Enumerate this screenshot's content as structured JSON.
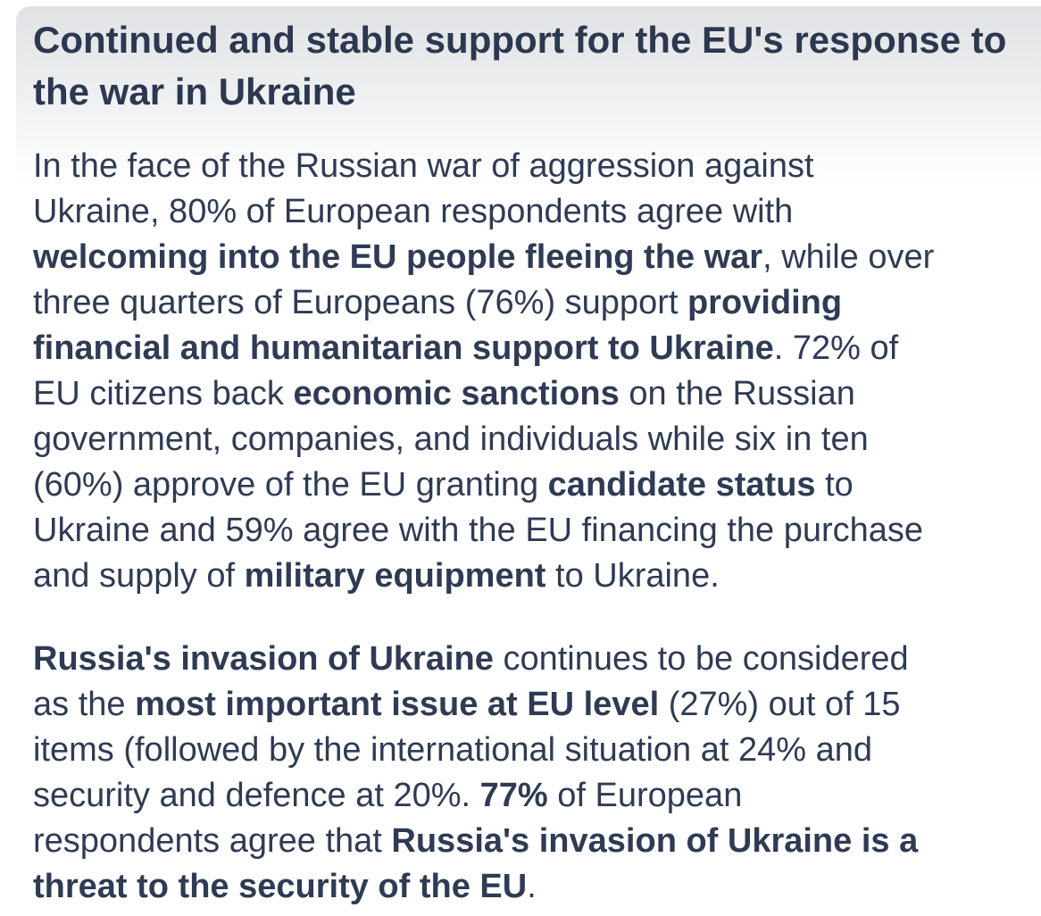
{
  "page": {
    "background": "#ffffff",
    "band_top_color": "#e1e2e5",
    "heading_color": "#2c3850",
    "text_color": "#2f3b54"
  },
  "heading": {
    "lines": [
      "Continued and stable support for the EU's response to",
      "the war in Ukraine"
    ]
  },
  "paragraphs": [
    {
      "lines": [
        [
          {
            "t": "In the face of the Russian war of aggression against",
            "b": false
          }
        ],
        [
          {
            "t": "Ukraine, 80% of European respondents agree with",
            "b": false
          }
        ],
        [
          {
            "t": "welcoming into the EU people fleeing the war",
            "b": true
          },
          {
            "t": ", while over",
            "b": false
          }
        ],
        [
          {
            "t": "three quarters of Europeans (76%) support ",
            "b": false
          },
          {
            "t": "providing",
            "b": true
          }
        ],
        [
          {
            "t": "financial and humanitarian support to Ukraine",
            "b": true
          },
          {
            "t": ". 72% of",
            "b": false
          }
        ],
        [
          {
            "t": "EU citizens back ",
            "b": false
          },
          {
            "t": "economic sanctions",
            "b": true
          },
          {
            "t": " on the Russian",
            "b": false
          }
        ],
        [
          {
            "t": "government, companies, and individuals while six in ten",
            "b": false
          }
        ],
        [
          {
            "t": "(60%) approve of the EU granting ",
            "b": false
          },
          {
            "t": "candidate status",
            "b": true
          },
          {
            "t": " to",
            "b": false
          }
        ],
        [
          {
            "t": "Ukraine and 59% agree with the EU financing the purchase",
            "b": false
          }
        ],
        [
          {
            "t": "and supply of ",
            "b": false
          },
          {
            "t": "military equipment",
            "b": true
          },
          {
            "t": " to Ukraine.",
            "b": false
          }
        ]
      ]
    },
    {
      "lines": [
        [
          {
            "t": "Russia's invasion of Ukraine",
            "b": true
          },
          {
            "t": " continues to be considered",
            "b": false
          }
        ],
        [
          {
            "t": "as the ",
            "b": false
          },
          {
            "t": "most important issue at EU level",
            "b": true
          },
          {
            "t": " (27%) out of 15",
            "b": false
          }
        ],
        [
          {
            "t": "items (followed by the international situation at 24% and",
            "b": false
          }
        ],
        [
          {
            "t": "security and defence at 20%. ",
            "b": false
          },
          {
            "t": "77%",
            "b": true
          },
          {
            "t": " of European",
            "b": false
          }
        ],
        [
          {
            "t": "respondents agree that ",
            "b": false
          },
          {
            "t": "Russia's invasion of Ukraine is a",
            "b": true
          }
        ],
        [
          {
            "t": "threat to the security of the EU",
            "b": true
          },
          {
            "t": ".",
            "b": false
          }
        ]
      ]
    }
  ]
}
